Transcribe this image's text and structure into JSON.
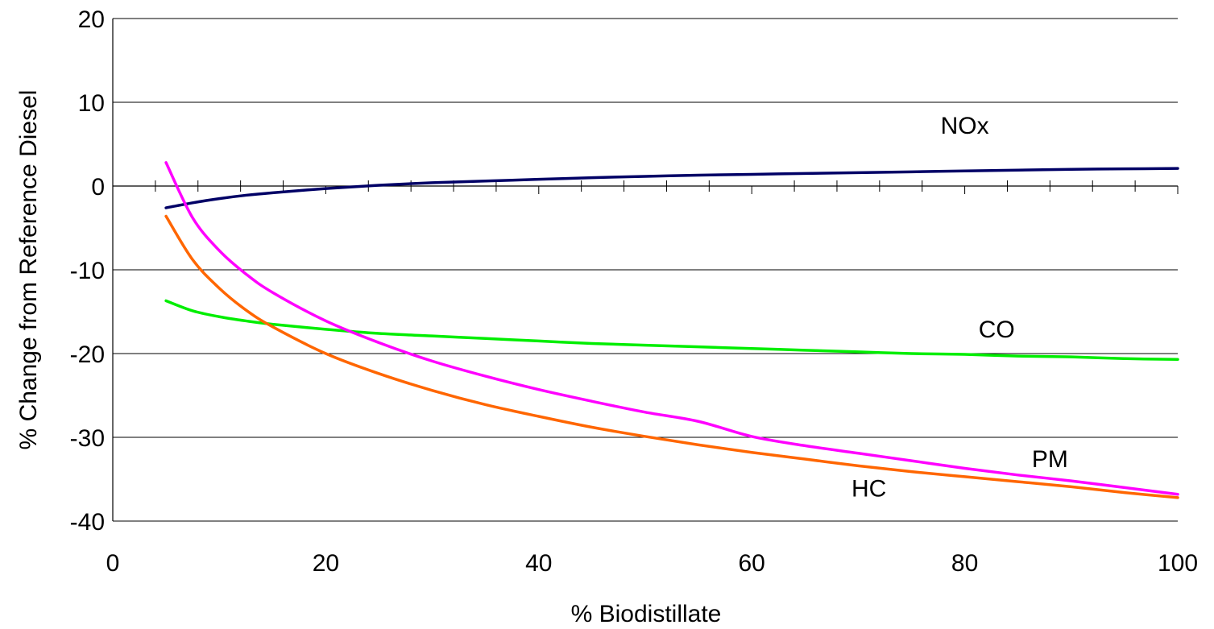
{
  "chart_data": {
    "type": "line",
    "title": "",
    "xlabel": "% Biodistillate",
    "ylabel": "% Change from Reference Diesel",
    "xlim": [
      0,
      100
    ],
    "ylim": [
      -40,
      20
    ],
    "x_ticks": [
      0,
      20,
      40,
      60,
      80,
      100
    ],
    "y_ticks": [
      20,
      10,
      0,
      -10,
      -20,
      -30,
      -40
    ],
    "grid": "horizontal",
    "legend": "none",
    "x": [
      5,
      7.5,
      10,
      12.5,
      15,
      20,
      25,
      30,
      35,
      40,
      45,
      50,
      55,
      60,
      65,
      70,
      75,
      80,
      85,
      90,
      95,
      100
    ],
    "series": [
      {
        "name": "NOx",
        "label": "NOx",
        "color": "#000066",
        "label_pos": [
          80,
          7.3
        ],
        "values": [
          -2.6,
          -2.0,
          -1.5,
          -1.1,
          -0.8,
          -0.3,
          0.1,
          0.4,
          0.6,
          0.8,
          1.0,
          1.15,
          1.3,
          1.4,
          1.5,
          1.6,
          1.7,
          1.8,
          1.9,
          2.0,
          2.05,
          2.1
        ]
      },
      {
        "name": "CO",
        "label": "CO",
        "color": "#00ee00",
        "label_pos": [
          83,
          -17
        ],
        "values": [
          -13.7,
          -14.9,
          -15.6,
          -16.1,
          -16.5,
          -17.1,
          -17.6,
          -17.9,
          -18.2,
          -18.5,
          -18.8,
          -19.0,
          -19.2,
          -19.4,
          -19.6,
          -19.8,
          -20.0,
          -20.1,
          -20.3,
          -20.4,
          -20.6,
          -20.7
        ]
      },
      {
        "name": "PM",
        "label": "PM",
        "color": "#ff00ff",
        "label_pos": [
          88,
          -32.5
        ],
        "values": [
          2.8,
          -3.8,
          -7.7,
          -10.5,
          -12.7,
          -16.1,
          -18.7,
          -20.9,
          -22.7,
          -24.3,
          -25.7,
          -27.0,
          -28.1,
          -29.9,
          -31.0,
          -31.9,
          -32.8,
          -33.7,
          -34.5,
          -35.2,
          -36.0,
          -36.8
        ]
      },
      {
        "name": "HC",
        "label": "HC",
        "color": "#ff6600",
        "label_pos": [
          71,
          -36
        ],
        "values": [
          -3.6,
          -8.8,
          -12.2,
          -14.8,
          -16.8,
          -20.0,
          -22.4,
          -24.4,
          -26.1,
          -27.5,
          -28.8,
          -29.9,
          -30.9,
          -31.8,
          -32.6,
          -33.4,
          -34.1,
          -34.7,
          -35.3,
          -35.9,
          -36.6,
          -37.2
        ]
      }
    ]
  }
}
